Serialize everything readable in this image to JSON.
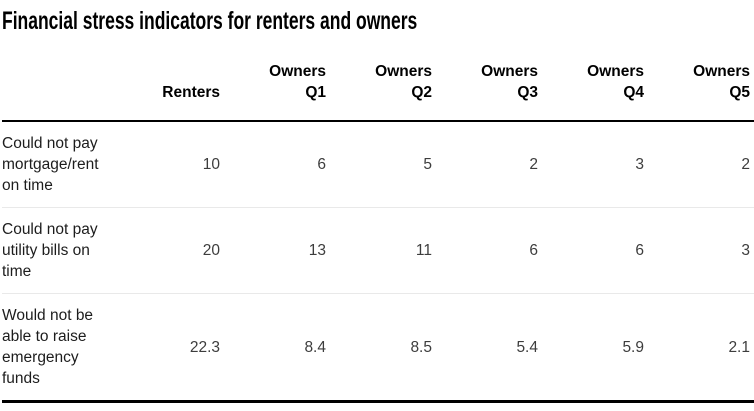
{
  "title": "Financial stress indicators for renters and owners",
  "table": {
    "headers": [
      {
        "top": "",
        "bottom": "Renters"
      },
      {
        "top": "Owners",
        "bottom": "Q1"
      },
      {
        "top": "Owners",
        "bottom": "Q2"
      },
      {
        "top": "Owners",
        "bottom": "Q3"
      },
      {
        "top": "Owners",
        "bottom": "Q4"
      },
      {
        "top": "Owners",
        "bottom": "Q5"
      }
    ],
    "rows": [
      {
        "label": "Could not pay mortgage/rent on time",
        "values": [
          "10",
          "6",
          "5",
          "2",
          "3",
          "2"
        ]
      },
      {
        "label": "Could not pay utility bills on time",
        "values": [
          "20",
          "13",
          "11",
          "6",
          "6",
          "3"
        ]
      },
      {
        "label": "Would not be able to raise emergency funds",
        "values": [
          "22.3",
          "8.4",
          "8.5",
          "5.4",
          "5.9",
          "2.1"
        ]
      }
    ]
  },
  "colors": {
    "rule": "#000000",
    "row_divider": "#e9e9e9",
    "label_text": "#1d1d1d",
    "value_text": "#3d3d3d"
  },
  "chart_data": {
    "type": "table",
    "title": "Financial stress indicators for renters and owners",
    "columns": [
      "Renters",
      "Owners Q1",
      "Owners Q2",
      "Owners Q3",
      "Owners Q4",
      "Owners Q5"
    ],
    "rows": [
      {
        "label": "Could not pay mortgage/rent on time",
        "values": [
          10,
          6,
          5,
          2,
          3,
          2
        ]
      },
      {
        "label": "Could not pay utility bills on time",
        "values": [
          20,
          13,
          11,
          6,
          6,
          3
        ]
      },
      {
        "label": "Would not be able to raise emergency funds",
        "values": [
          22.3,
          8.4,
          8.5,
          5.4,
          5.9,
          2.1
        ]
      }
    ],
    "layout": {
      "value_alignment": "right",
      "header_rule": true,
      "bottom_rule": true
    }
  }
}
